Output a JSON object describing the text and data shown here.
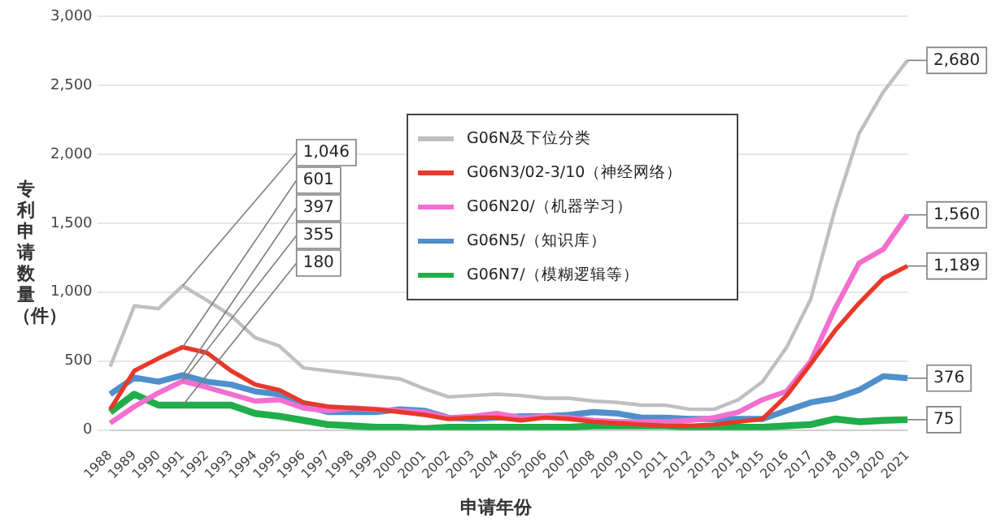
{
  "chart_data": {
    "type": "line",
    "xlabel": "申请年份",
    "ylabel": "专利申请数量（件）",
    "categories": [
      "1988",
      "1989",
      "1990",
      "1991",
      "1992",
      "1993",
      "1994",
      "1995",
      "1996",
      "1997",
      "1998",
      "1999",
      "2000",
      "2001",
      "2002",
      "2003",
      "2004",
      "2005",
      "2006",
      "2007",
      "2008",
      "2009",
      "2010",
      "2011",
      "2012",
      "2013",
      "2014",
      "2015",
      "2016",
      "2017",
      "2018",
      "2019",
      "2020",
      "2021"
    ],
    "ylim": [
      0,
      3000
    ],
    "yticks": [
      {
        "value": 0,
        "label": "0"
      },
      {
        "value": 500,
        "label": "500"
      },
      {
        "value": 1000,
        "label": "1,000"
      },
      {
        "value": 1500,
        "label": "1,500"
      },
      {
        "value": 2000,
        "label": "2,000"
      },
      {
        "value": 2500,
        "label": "2,500"
      },
      {
        "value": 3000,
        "label": "3,000"
      }
    ],
    "grid": "y",
    "legend": "top",
    "marker": "none",
    "line_style": "solid",
    "series": [
      {
        "name": "G06N及下位分类",
        "color": "#bfbfbf",
        "values": [
          460,
          900,
          880,
          1046,
          940,
          830,
          670,
          610,
          450,
          430,
          410,
          390,
          370,
          300,
          240,
          250,
          260,
          250,
          230,
          230,
          210,
          200,
          180,
          180,
          150,
          150,
          220,
          350,
          600,
          950,
          1600,
          2150,
          2450,
          2680
        ],
        "value_labels": [
          null,
          null,
          null,
          "1,046",
          null,
          null,
          null,
          null,
          null,
          null,
          null,
          null,
          null,
          null,
          null,
          null,
          null,
          null,
          null,
          null,
          null,
          null,
          null,
          null,
          null,
          null,
          null,
          null,
          null,
          null,
          null,
          null,
          null,
          "2,680"
        ]
      },
      {
        "name": "G06N3/02-3/10（神经网络）",
        "color": "#e8382a",
        "values": [
          150,
          430,
          520,
          601,
          560,
          430,
          330,
          290,
          200,
          170,
          160,
          150,
          130,
          110,
          80,
          90,
          90,
          70,
          90,
          80,
          60,
          50,
          40,
          30,
          30,
          40,
          60,
          80,
          250,
          480,
          720,
          920,
          1100,
          1189
        ],
        "value_labels": [
          null,
          null,
          null,
          "601",
          null,
          null,
          null,
          null,
          null,
          null,
          null,
          null,
          null,
          null,
          null,
          null,
          null,
          null,
          null,
          null,
          null,
          null,
          null,
          null,
          null,
          null,
          null,
          null,
          null,
          null,
          null,
          null,
          null,
          "1,189"
        ]
      },
      {
        "name": "G06N20/（机器学习）",
        "color": "#f26fd0",
        "values": [
          50,
          170,
          270,
          355,
          310,
          260,
          210,
          220,
          160,
          140,
          160,
          150,
          140,
          130,
          90,
          100,
          120,
          90,
          100,
          90,
          70,
          60,
          60,
          60,
          70,
          90,
          130,
          220,
          280,
          500,
          880,
          1210,
          1310,
          1560
        ],
        "value_labels": [
          null,
          null,
          null,
          "355",
          null,
          null,
          null,
          null,
          null,
          null,
          null,
          null,
          null,
          null,
          null,
          null,
          null,
          null,
          null,
          null,
          null,
          null,
          null,
          null,
          null,
          null,
          null,
          null,
          null,
          null,
          null,
          null,
          null,
          "1,560"
        ]
      },
      {
        "name": "G06N5/（知识库）",
        "color": "#4f8fcb",
        "values": [
          260,
          380,
          350,
          397,
          350,
          330,
          280,
          260,
          180,
          130,
          130,
          130,
          150,
          140,
          90,
          80,
          90,
          100,
          100,
          110,
          130,
          120,
          90,
          90,
          80,
          80,
          80,
          80,
          140,
          200,
          230,
          290,
          390,
          376
        ],
        "value_labels": [
          null,
          null,
          null,
          "397",
          null,
          null,
          null,
          null,
          null,
          null,
          null,
          null,
          null,
          null,
          null,
          null,
          null,
          null,
          null,
          null,
          null,
          null,
          null,
          null,
          null,
          null,
          null,
          null,
          null,
          null,
          null,
          null,
          null,
          "376"
        ]
      },
      {
        "name": "G06N7/（模糊逻辑等）",
        "color": "#1fae4a",
        "values": [
          130,
          260,
          180,
          180,
          180,
          180,
          120,
          100,
          70,
          40,
          30,
          20,
          20,
          10,
          20,
          20,
          20,
          20,
          20,
          20,
          30,
          30,
          30,
          30,
          20,
          20,
          20,
          20,
          30,
          40,
          80,
          60,
          70,
          75
        ],
        "value_labels": [
          null,
          null,
          null,
          "180",
          null,
          null,
          null,
          null,
          null,
          null,
          null,
          null,
          null,
          null,
          null,
          null,
          null,
          null,
          null,
          null,
          null,
          null,
          null,
          null,
          null,
          null,
          null,
          null,
          null,
          null,
          null,
          null,
          null,
          "75"
        ]
      }
    ]
  }
}
